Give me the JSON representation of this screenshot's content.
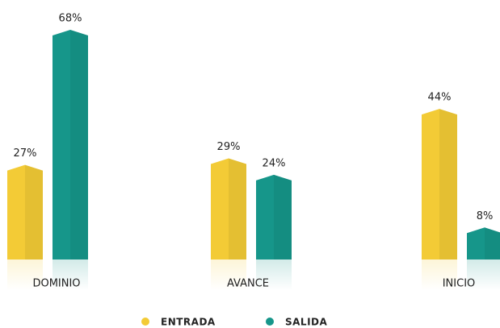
{
  "chart_data": {
    "type": "bar",
    "categories": [
      "DOMINIO",
      "AVANCE",
      "INICIO"
    ],
    "series": [
      {
        "name": "ENTRADA",
        "color": "#f3cb36",
        "values": [
          27,
          29,
          44
        ],
        "value_labels": [
          "27%",
          "29%",
          "44%"
        ]
      },
      {
        "name": "SALIDA",
        "color": "#16968a",
        "values": [
          68,
          24,
          8
        ],
        "value_labels": [
          "68%",
          "24%",
          "8%"
        ]
      }
    ]
  }
}
